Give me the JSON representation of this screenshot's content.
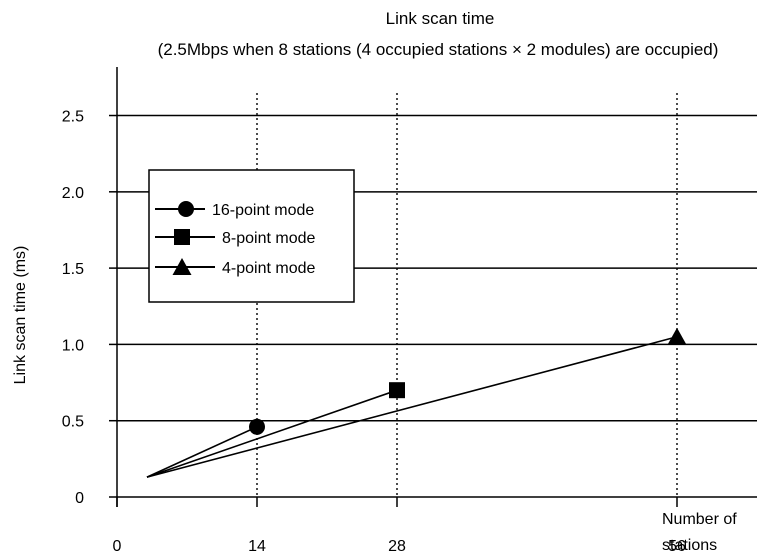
{
  "chart_data": {
    "type": "line",
    "title": "Link scan time",
    "subtitle": "(2.5Mbps when 8 stations (4 occupied stations × 2 modules) are occupied)",
    "xlabel": [
      "Number of",
      "stations"
    ],
    "ylabel": "Link scan time (ms)",
    "x_ticks": [
      0,
      14,
      28,
      56
    ],
    "x_tick_labels": [
      "0",
      "14",
      "28",
      "56"
    ],
    "y_ticks": [
      0,
      0.5,
      1.0,
      1.5,
      2.0,
      2.5
    ],
    "y_tick_labels": [
      "0",
      "0.5",
      "1.0",
      "1.5",
      "2.0",
      "2.5"
    ],
    "xlim": [
      0,
      64
    ],
    "ylim": [
      0,
      2.7
    ],
    "grid": {
      "horizontal": true,
      "vertical_dotted_at": [
        14,
        28,
        56
      ]
    },
    "legend_position": "upper-left",
    "series": [
      {
        "name": "16-point mode",
        "marker": "circle",
        "points": [
          [
            3,
            0.13
          ],
          [
            14,
            0.46
          ]
        ]
      },
      {
        "name": "8-point mode",
        "marker": "square",
        "points": [
          [
            3,
            0.13
          ],
          [
            28,
            0.7
          ]
        ]
      },
      {
        "name": "4-point mode",
        "marker": "triangle",
        "points": [
          [
            3,
            0.13
          ],
          [
            56,
            1.05
          ]
        ]
      }
    ]
  }
}
